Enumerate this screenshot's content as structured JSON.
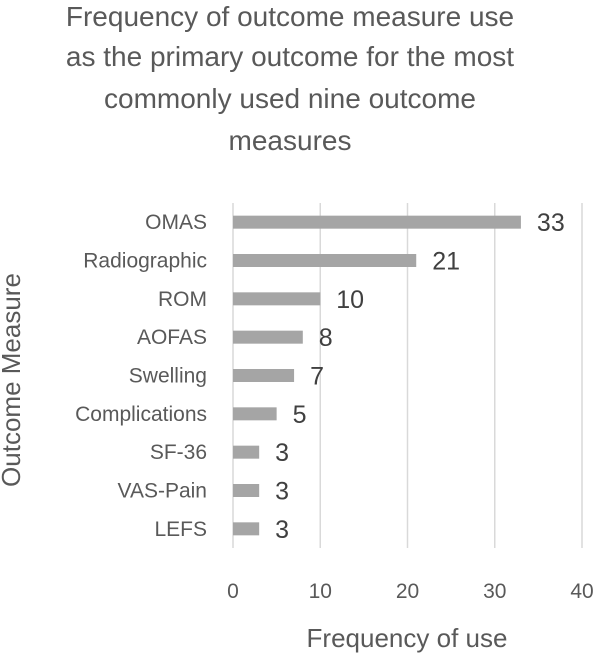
{
  "chart_data": {
    "type": "bar",
    "orientation": "horizontal",
    "title_lines": [
      "Frequency of outcome measure use",
      "as the primary outcome for the most",
      "commonly used nine outcome",
      "measures"
    ],
    "xlabel": "Frequency of use",
    "ylabel": "Outcome Measure",
    "categories": [
      "OMAS",
      "Radiographic",
      "ROM",
      "AOFAS",
      "Swelling",
      "Complications",
      "SF-36",
      "VAS-Pain",
      "LEFS"
    ],
    "values": [
      33,
      21,
      10,
      8,
      7,
      5,
      3,
      3,
      3
    ],
    "xlim": [
      0,
      40
    ],
    "xticks": [
      "0",
      "10",
      "20",
      "30",
      "40"
    ],
    "grid": true,
    "legend": "none",
    "bar_color": "#a5a5a5"
  }
}
